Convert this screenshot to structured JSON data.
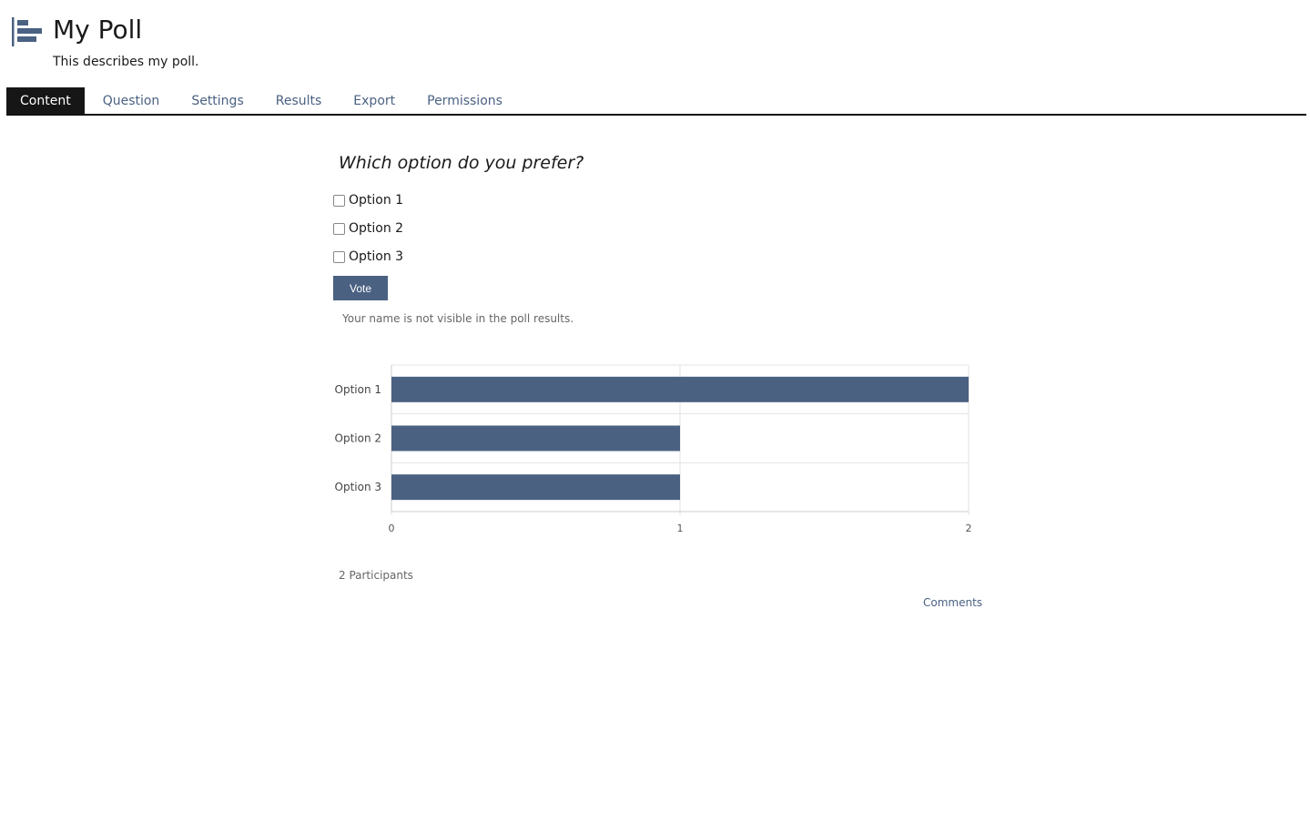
{
  "header": {
    "title": "My Poll",
    "description": "This describes my poll.",
    "icon": "poll-bar-icon"
  },
  "tabs": [
    {
      "label": "Content",
      "active": true
    },
    {
      "label": "Question"
    },
    {
      "label": "Settings"
    },
    {
      "label": "Results"
    },
    {
      "label": "Export"
    },
    {
      "label": "Permissions"
    }
  ],
  "poll": {
    "question": "Which option do you prefer?",
    "options": [
      {
        "label": "Option 1",
        "checked": false
      },
      {
        "label": "Option 2",
        "checked": false
      },
      {
        "label": "Option 3",
        "checked": false
      }
    ],
    "vote_label": "Vote",
    "privacy_note": "Your name is not visible in the poll results."
  },
  "chart_data": {
    "type": "bar",
    "orientation": "horizontal",
    "categories": [
      "Option 1",
      "Option 2",
      "Option 3"
    ],
    "values": [
      2,
      1,
      1
    ],
    "xlim": [
      0,
      2
    ],
    "xticks": [
      "0",
      "1",
      "2"
    ],
    "grid": true,
    "color": "#4a6182"
  },
  "footer": {
    "participants": "2 Participants",
    "comments_label": "Comments"
  }
}
